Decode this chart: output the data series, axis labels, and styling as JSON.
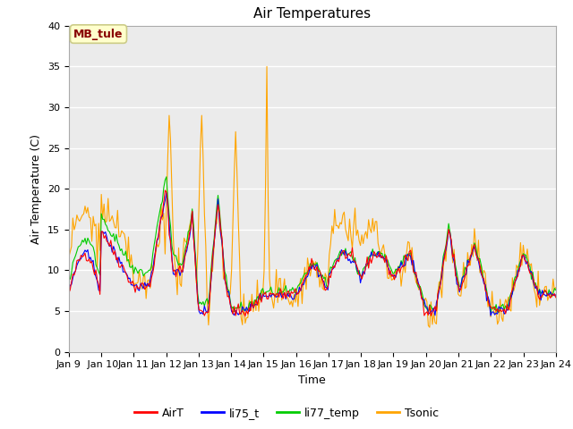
{
  "title": "Air Temperatures",
  "xlabel": "Time",
  "ylabel": "Air Temperature (C)",
  "ylim": [
    0,
    40
  ],
  "yticks": [
    0,
    5,
    10,
    15,
    20,
    25,
    30,
    35,
    40
  ],
  "x_tick_labels": [
    "Jan 9",
    " Jan 10",
    "Jan 11",
    "Jan 12",
    "Jan 13",
    "Jan 14",
    "Jan 15",
    "Jan 16",
    "Jan 17",
    "Jan 18",
    "Jan 19",
    "Jan 20",
    "Jan 21",
    "Jan 22",
    "Jan 23",
    "Jan 24"
  ],
  "series_labels": [
    "AirT",
    "li75_t",
    "li77_temp",
    "Tsonic"
  ],
  "series_colors": [
    "#ff0000",
    "#0000ff",
    "#00cc00",
    "#ffa500"
  ],
  "annotation_text": "MB_tule",
  "annotation_color": "#880000",
  "annotation_bg": "#ffffcc",
  "annotation_border": "#cccc88",
  "plot_bg": "#ebebeb",
  "title_fontsize": 11,
  "tick_fontsize": 8,
  "label_fontsize": 9,
  "legend_fontsize": 9
}
